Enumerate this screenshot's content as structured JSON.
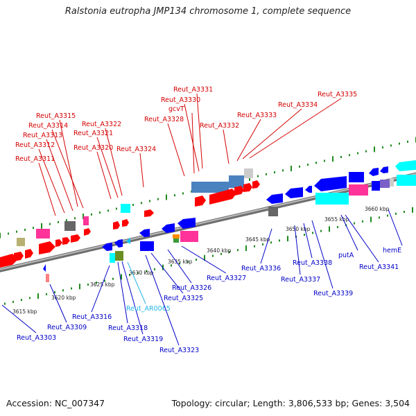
{
  "title": "Ralstonia eutropha JMP134 chromosome 1, complete sequence",
  "footer": {
    "accession": "Accession: NC_007347",
    "summary": "Topology: circular; Length: 3,806,533 bp; Genes: 3,504"
  },
  "colors": {
    "forward_label": "#d40000",
    "reverse_label": "#0000c8",
    "rna_label": "#22b5e6",
    "backbone": "#8c8c8c",
    "tick_dots": "#1e8a1e"
  },
  "kbp_ticks": [
    "3615 kbp",
    "3620 kbp",
    "3625 kbp",
    "3630 kbp",
    "3635 kbp",
    "3640 kbp",
    "3645 kbp",
    "3650 kbp",
    "3655 kbp",
    "3660 kbp"
  ],
  "forward_genes": [
    "Reut_A3311",
    "Reut_A3312",
    "Reut_A3313",
    "Reut_A3314",
    "Reut_A3315",
    "Reut_A3320",
    "Reut_A3321",
    "Reut_A3322",
    "Reut_A3324",
    "Reut_A3328",
    "gcvT",
    "Reut_A3330",
    "Reut_A3331",
    "Reut_A3332",
    "Reut_A3333",
    "Reut_A3334",
    "Reut_A3335"
  ],
  "reverse_genes": [
    "Reut_A3303",
    "Reut_A3309",
    "Reut_A3316",
    "Reut_A3318",
    "Reut_A3319",
    "Reut_AR0065",
    "Reut_A3323",
    "Reut_A3325",
    "Reut_A3326",
    "Reut_A3327",
    "Reut_A3336",
    "Reut_A3337",
    "Reut_A3338",
    "Reut_A3339",
    "putA",
    "hemE",
    "Reut_A3341"
  ]
}
